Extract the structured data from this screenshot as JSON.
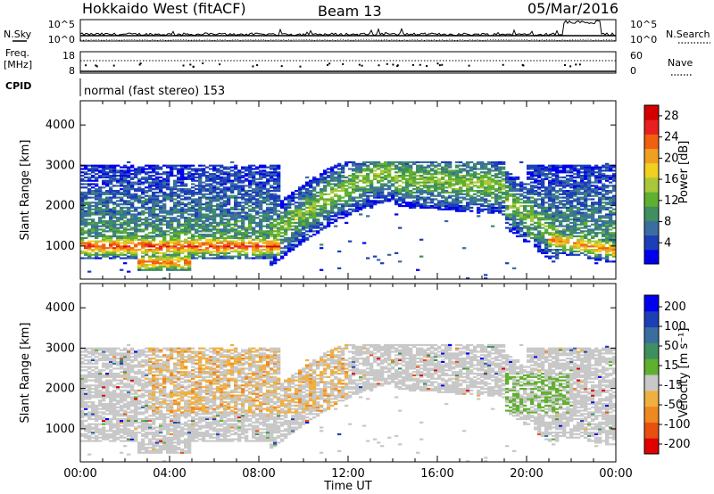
{
  "header": {
    "station": "Hokkaido West (fitACF)",
    "beam": "Beam 13",
    "date": "05/Mar/2016"
  },
  "panels": {
    "nsky_label": "N.Sky",
    "nsearch_label": "N.Search",
    "freq_label_1": "Freq.",
    "freq_label_2": "[MHz]",
    "nave_label": "Nave",
    "cpid_label": "CPID",
    "cpid_text": "normal (fast stereo) 153",
    "noise_ticks": [
      "10^5",
      "10^0"
    ],
    "freq_ticks": [
      "18",
      "8"
    ],
    "nave_ticks": [
      "60",
      "0"
    ]
  },
  "colors": {
    "power": [
      "#0000ee",
      "#1c3fb8",
      "#3a6e9e",
      "#3f8f60",
      "#60b030",
      "#a8c83a",
      "#f0d020",
      "#f0a020",
      "#f06010",
      "#e82020",
      "#d40000"
    ],
    "velocity": [
      "#e00000",
      "#e85010",
      "#f08820",
      "#f0b040",
      "#c8c8c8",
      "#60b030",
      "#3f8f60",
      "#3a6e9e",
      "#1c3fb8",
      "#0000ee"
    ]
  },
  "chart_data": [
    {
      "type": "heatmap",
      "name": "power",
      "xlabel": "Time UT",
      "ylabel": "Slant Range [km]",
      "colorbar_label": "Power [dB]",
      "colorbar_ticks": [
        4,
        8,
        12,
        16,
        20,
        24,
        28
      ],
      "colorbar_range": [
        0,
        30
      ],
      "xlim": [
        0,
        24
      ],
      "ylim": [
        180,
        4600
      ],
      "yticks": [
        1000,
        2000,
        3000,
        4000
      ],
      "xticks": [
        "00:00",
        "04:00",
        "08:00",
        "12:00",
        "16:00",
        "20:00",
        "00:00"
      ],
      "echo_bands": [
        {
          "t": [
            0,
            24
          ],
          "range": [
            800,
            1200
          ],
          "power": 28,
          "note": "strong layer 00:00-08:00, again after 21:00"
        },
        {
          "t": [
            9,
            21
          ],
          "range": [
            2000,
            3100
          ],
          "power": 12,
          "note": "far-range arc"
        }
      ]
    },
    {
      "type": "heatmap",
      "name": "velocity",
      "xlabel": "Time UT",
      "ylabel": "Slant Range [km]",
      "colorbar_label": "Velocity [m s⁻¹]",
      "colorbar_ticks": [
        200,
        100,
        50,
        15,
        -15,
        -50,
        -100,
        -200
      ],
      "colorbar_range": [
        -250,
        250
      ],
      "xlim": [
        0,
        24
      ],
      "ylim": [
        180,
        4600
      ],
      "yticks": [
        1000,
        2000,
        3000,
        4000
      ],
      "xticks": [
        "00:00",
        "04:00",
        "08:00",
        "12:00",
        "16:00",
        "20:00",
        "00:00"
      ]
    }
  ]
}
